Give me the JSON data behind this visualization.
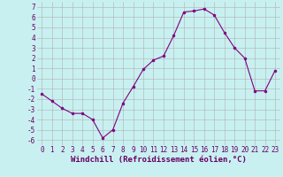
{
  "x": [
    0,
    1,
    2,
    3,
    4,
    5,
    6,
    7,
    8,
    9,
    10,
    11,
    12,
    13,
    14,
    15,
    16,
    17,
    18,
    19,
    20,
    21,
    22,
    23
  ],
  "y": [
    -1.5,
    -2.2,
    -2.9,
    -3.4,
    -3.4,
    -4.0,
    -5.8,
    -5.0,
    -2.4,
    -0.8,
    0.9,
    1.8,
    2.2,
    4.2,
    6.5,
    6.6,
    6.8,
    6.2,
    4.5,
    3.0,
    2.0,
    -1.2,
    -1.2,
    0.8
  ],
  "line_color": "#800080",
  "marker_color": "#800080",
  "bg_color": "#c8f0f0",
  "grid_color": "#b0b0b0",
  "xlabel": "Windchill (Refroidissement éolien,°C)",
  "xlim": [
    -0.5,
    23.5
  ],
  "ylim": [
    -6.5,
    7.5
  ],
  "yticks": [
    -6,
    -5,
    -4,
    -3,
    -2,
    -1,
    0,
    1,
    2,
    3,
    4,
    5,
    6,
    7
  ],
  "xticks": [
    0,
    1,
    2,
    3,
    4,
    5,
    6,
    7,
    8,
    9,
    10,
    11,
    12,
    13,
    14,
    15,
    16,
    17,
    18,
    19,
    20,
    21,
    22,
    23
  ],
  "font_color": "#660066",
  "tick_fontsize": 5.5,
  "label_fontsize": 6.5
}
